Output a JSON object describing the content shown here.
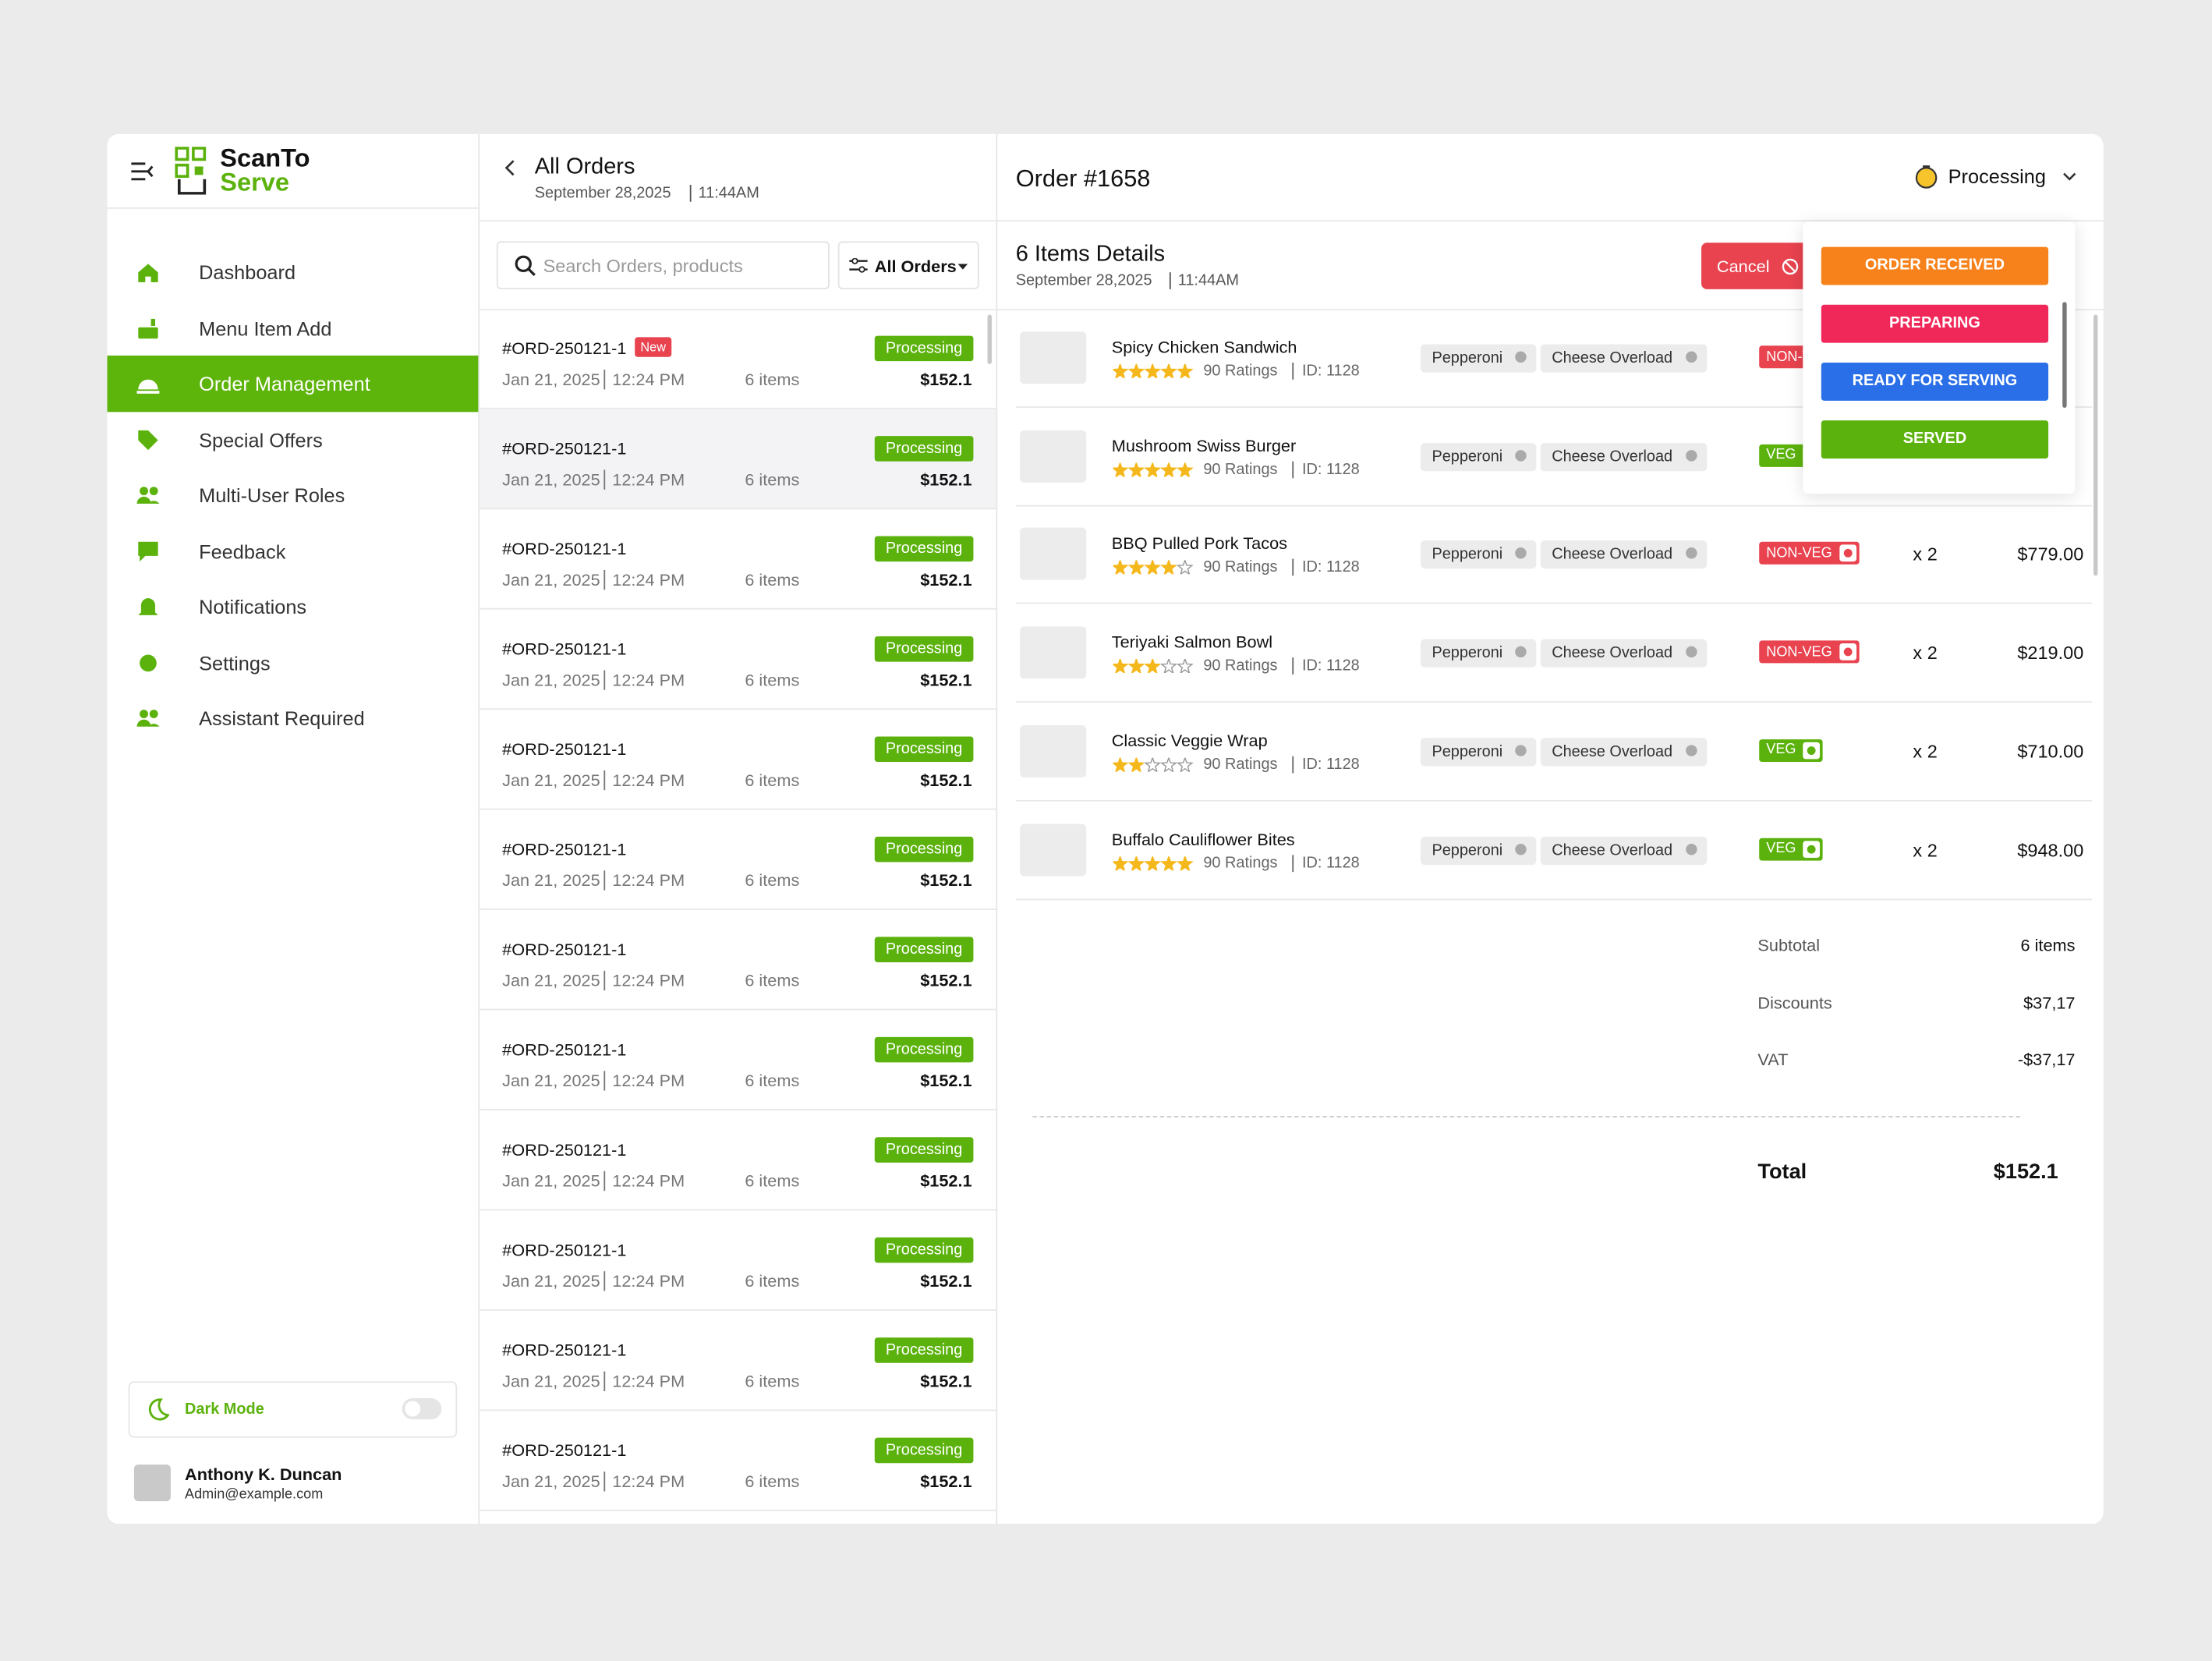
{
  "sidebar": {
    "brand_top": "ScanTo",
    "brand_bottom": "Serve",
    "nav": [
      "Dashboard",
      "Menu Item Add",
      "Order Management",
      "Special Offers",
      "Multi-User Roles",
      "Feedback",
      "Notifications",
      "Settings",
      "Assistant Required"
    ],
    "dark_mode": "Dark Mode",
    "user_name": "Anthony K. Duncan",
    "user_email": "Admin@example.com"
  },
  "orders_panel": {
    "title": "All Orders",
    "date": "September 28,2025",
    "time": "11:44AM",
    "search_placeholder": "Search Orders, products",
    "filter": "All Orders",
    "orders": [
      {
        "id": "#ORD-250121-1",
        "badge": "New",
        "date": "Jan 21, 2025",
        "time": "12:24 PM",
        "items": "6 items",
        "status": "Processing",
        "price": "$152.1"
      },
      {
        "id": "#ORD-250121-1",
        "date": "Jan 21, 2025",
        "time": "12:24 PM",
        "items": "6 items",
        "status": "Processing",
        "price": "$152.1"
      },
      {
        "id": "#ORD-250121-1",
        "date": "Jan 21, 2025",
        "time": "12:24 PM",
        "items": "6 items",
        "status": "Processing",
        "price": "$152.1"
      },
      {
        "id": "#ORD-250121-1",
        "date": "Jan 21, 2025",
        "time": "12:24 PM",
        "items": "6 items",
        "status": "Processing",
        "price": "$152.1"
      },
      {
        "id": "#ORD-250121-1",
        "date": "Jan 21, 2025",
        "time": "12:24 PM",
        "items": "6 items",
        "status": "Processing",
        "price": "$152.1"
      },
      {
        "id": "#ORD-250121-1",
        "date": "Jan 21, 2025",
        "time": "12:24 PM",
        "items": "6 items",
        "status": "Processing",
        "price": "$152.1"
      },
      {
        "id": "#ORD-250121-1",
        "date": "Jan 21, 2025",
        "time": "12:24 PM",
        "items": "6 items",
        "status": "Processing",
        "price": "$152.1"
      },
      {
        "id": "#ORD-250121-1",
        "date": "Jan 21, 2025",
        "time": "12:24 PM",
        "items": "6 items",
        "status": "Processing",
        "price": "$152.1"
      },
      {
        "id": "#ORD-250121-1",
        "date": "Jan 21, 2025",
        "time": "12:24 PM",
        "items": "6 items",
        "status": "Processing",
        "price": "$152.1"
      },
      {
        "id": "#ORD-250121-1",
        "date": "Jan 21, 2025",
        "time": "12:24 PM",
        "items": "6 items",
        "status": "Processing",
        "price": "$152.1"
      },
      {
        "id": "#ORD-250121-1",
        "date": "Jan 21, 2025",
        "time": "12:24 PM",
        "items": "6 items",
        "status": "Processing",
        "price": "$152.1"
      },
      {
        "id": "#ORD-250121-1",
        "date": "Jan 21, 2025",
        "time": "12:24 PM",
        "items": "6 items",
        "status": "Processing",
        "price": "$152.1"
      }
    ]
  },
  "detail": {
    "title": "Order #1658",
    "status": "Processing",
    "items_title": "6 Items Details",
    "date": "September 28,2025",
    "time": "11:44AM",
    "cancel": "Cancel",
    "items": [
      {
        "name": "Spicy Chicken Sandwich",
        "rating": 5,
        "ratings": "90 Ratings",
        "item_id": "ID: 1128",
        "tags": [
          "Pepperoni",
          "Cheese Overload"
        ],
        "diet": "NON-VEG"
      },
      {
        "name": "Mushroom Swiss Burger",
        "rating": 5,
        "ratings": "90 Ratings",
        "item_id": "ID: 1128",
        "tags": [
          "Pepperoni",
          "Cheese Overload"
        ],
        "diet": "VEG"
      },
      {
        "name": "BBQ Pulled Pork Tacos",
        "rating": 4,
        "ratings": "90 Ratings",
        "item_id": "ID: 1128",
        "tags": [
          "Pepperoni",
          "Cheese Overload"
        ],
        "diet": "NON-VEG",
        "qty": "x 2",
        "price": "$779.00"
      },
      {
        "name": "Teriyaki Salmon Bowl",
        "rating": 3,
        "ratings": "90 Ratings",
        "item_id": "ID: 1128",
        "tags": [
          "Pepperoni",
          "Cheese Overload"
        ],
        "diet": "NON-VEG",
        "qty": "x 2",
        "price": "$219.00"
      },
      {
        "name": "Classic Veggie Wrap",
        "rating": 2,
        "ratings": "90 Ratings",
        "item_id": "ID: 1128",
        "tags": [
          "Pepperoni",
          "Cheese Overload"
        ],
        "diet": "VEG",
        "qty": "x 2",
        "price": "$710.00"
      },
      {
        "name": "Buffalo Cauliflower Bites",
        "rating": 5,
        "ratings": "90 Ratings",
        "item_id": "ID: 1128",
        "tags": [
          "Pepperoni",
          "Cheese Overload"
        ],
        "diet": "VEG",
        "qty": "x 2",
        "price": "$948.00"
      }
    ],
    "summary": [
      {
        "label": "Subtotal",
        "value": "6 items"
      },
      {
        "label": "Discounts",
        "value": "$37,17"
      },
      {
        "label": "VAT",
        "value": "-$37,17"
      }
    ],
    "total_label": "Total",
    "total": "$152.1",
    "status_options": [
      {
        "label": "ORDER RECEIVED",
        "color": "#f7821b"
      },
      {
        "label": "PREPARING",
        "color": "#f0285a"
      },
      {
        "label": "READY FOR SERVING",
        "color": "#2a6fe8"
      },
      {
        "label": "SERVED",
        "color": "#5cb20d"
      }
    ]
  }
}
